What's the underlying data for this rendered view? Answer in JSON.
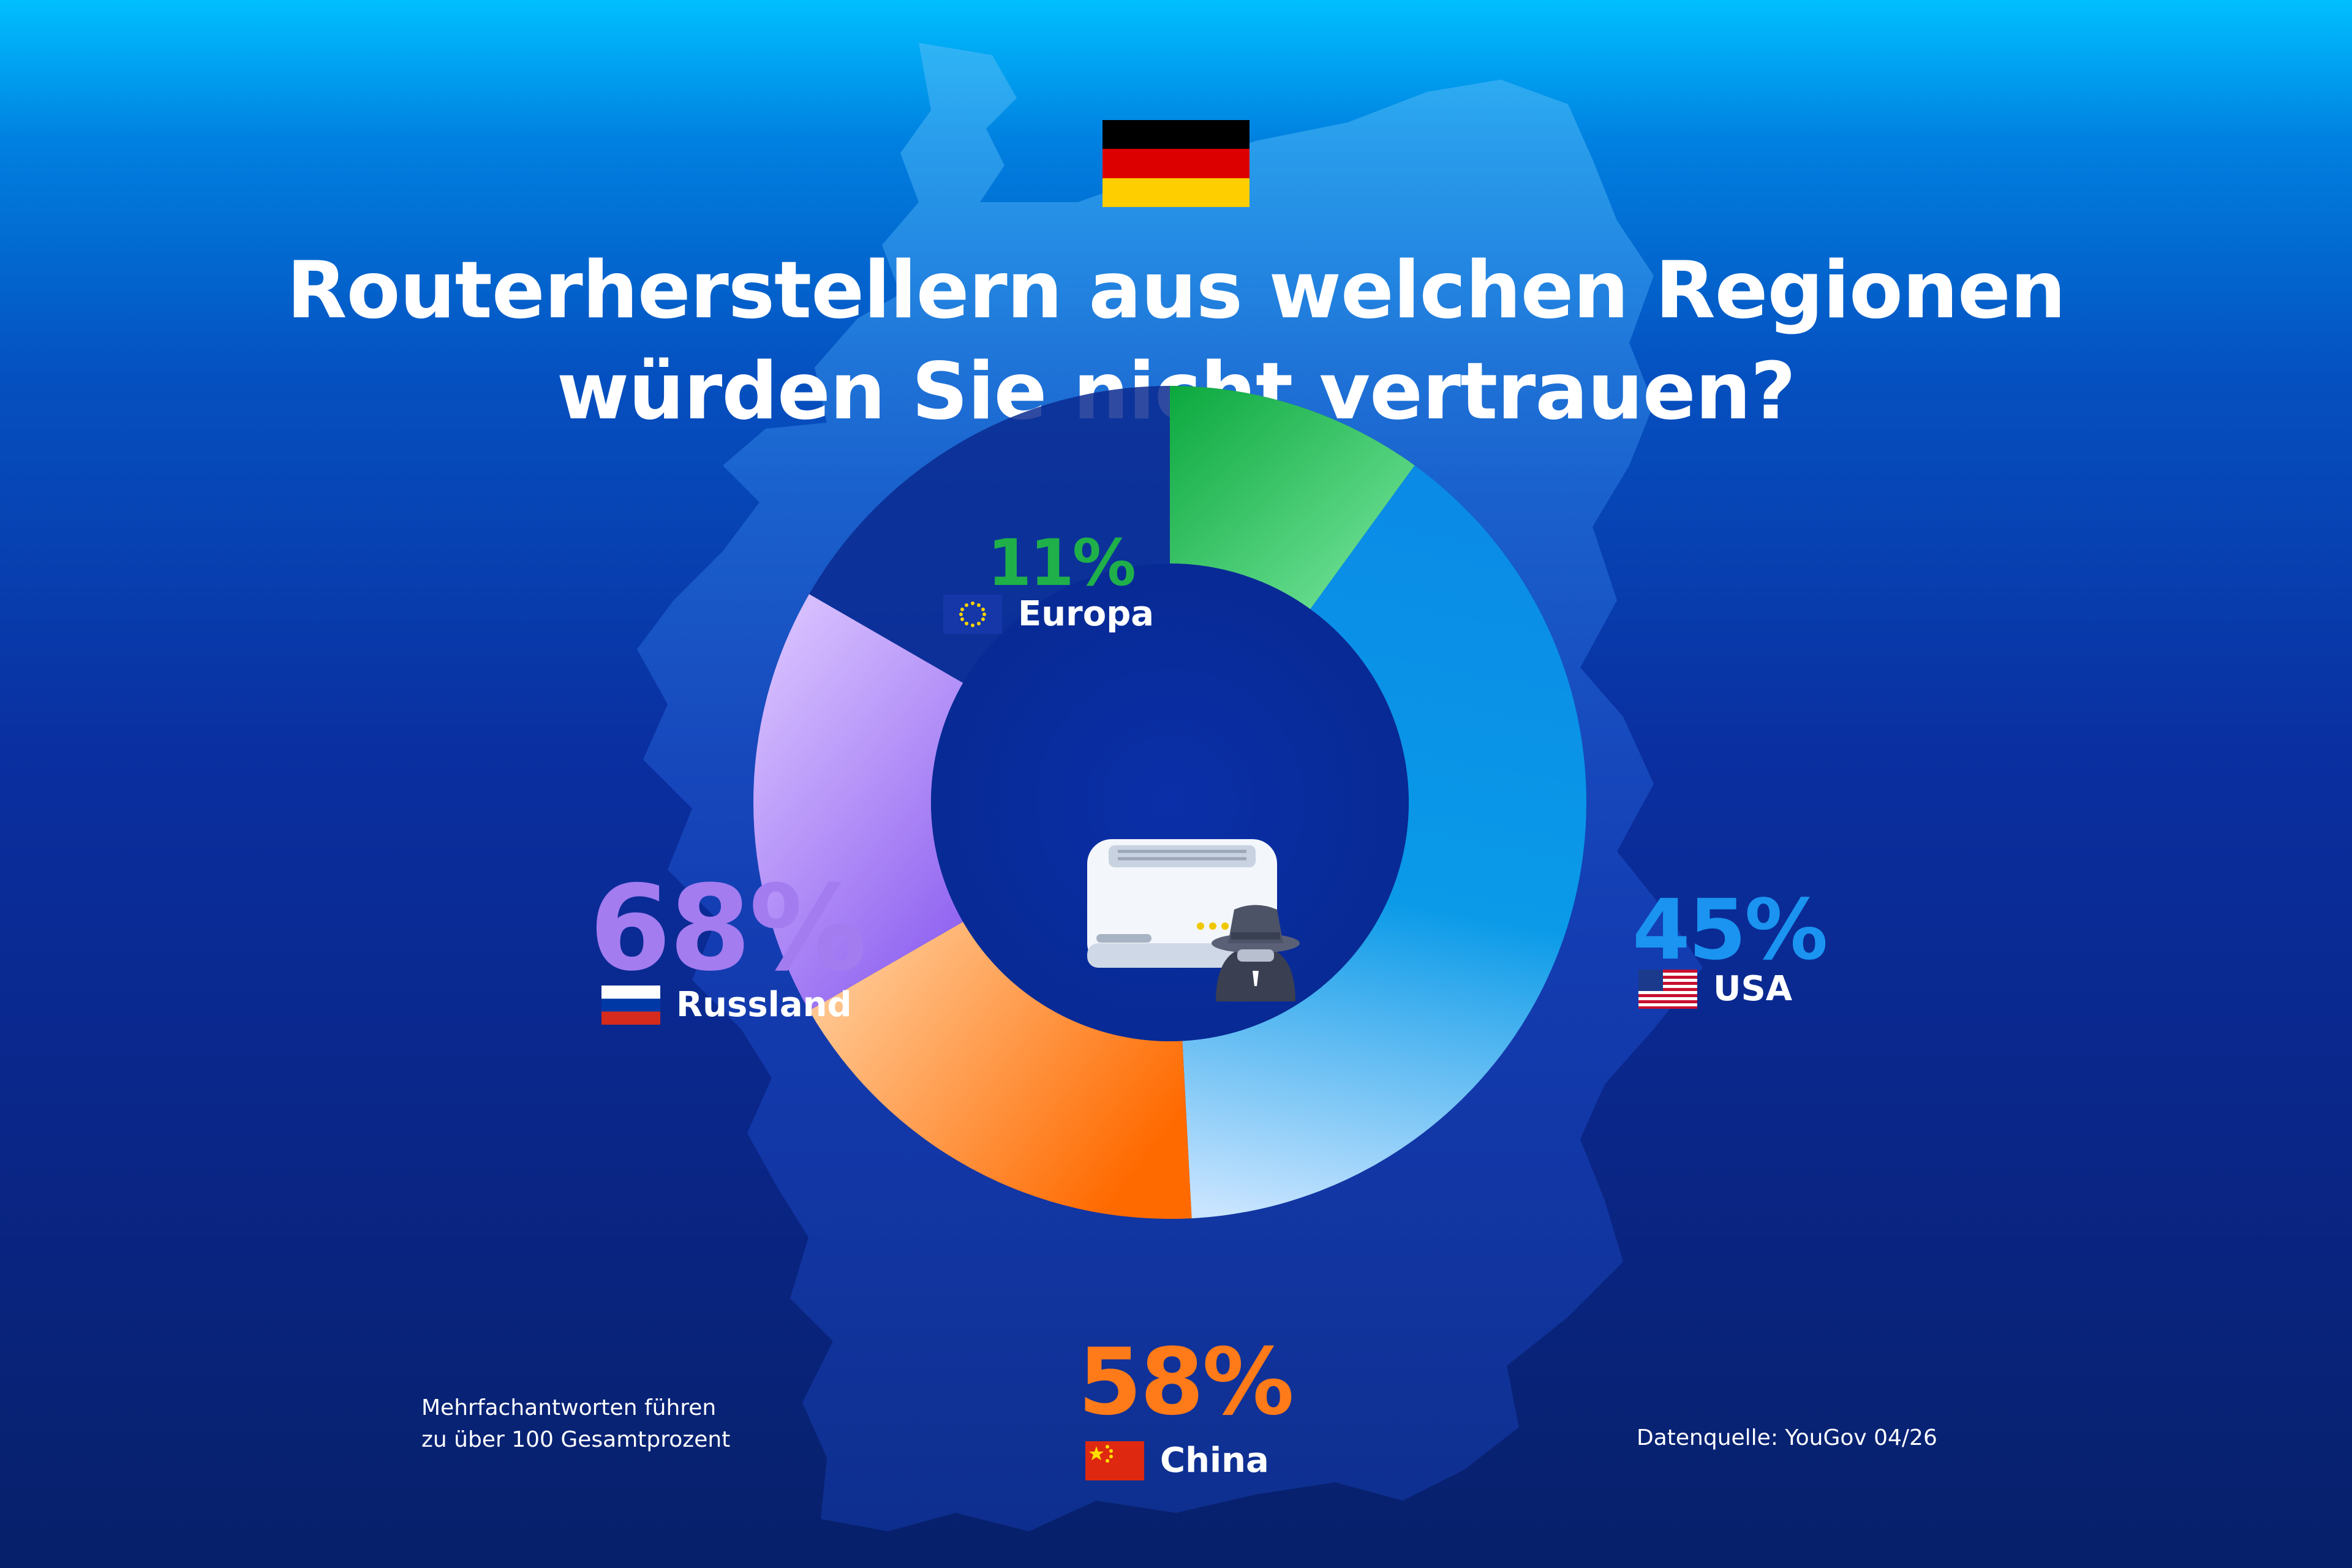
{
  "header": {
    "title_line1": "Routerherstellern aus welchen Regionen",
    "title_line2": "würden Sie nicht vertrauen?"
  },
  "chart_data": {
    "type": "pie",
    "title": "Routerherstellern aus welchen Regionen würden Sie nicht vertrauen?",
    "categories": [
      "Europa",
      "USA",
      "China",
      "Russland"
    ],
    "values": [
      11,
      45,
      58,
      68
    ],
    "labels": [
      "11%",
      "45%",
      "58%",
      "68%"
    ]
  },
  "colors": {
    "europa": "#1fb049",
    "usa": "#0e8fe8",
    "china": "#ff7a18",
    "russland": "#a37cf0"
  },
  "icons": [
    "german-flag-icon",
    "eu-flag-icon",
    "us-flag-icon",
    "china-flag-icon",
    "russia-flag-icon",
    "router-icon",
    "spy-icon"
  ],
  "footnotes": {
    "note_line1": "Mehrfachantworten führen",
    "note_line2": "zu über 100 Gesamtprozent",
    "source": "Datenquelle: YouGov 04/26"
  }
}
